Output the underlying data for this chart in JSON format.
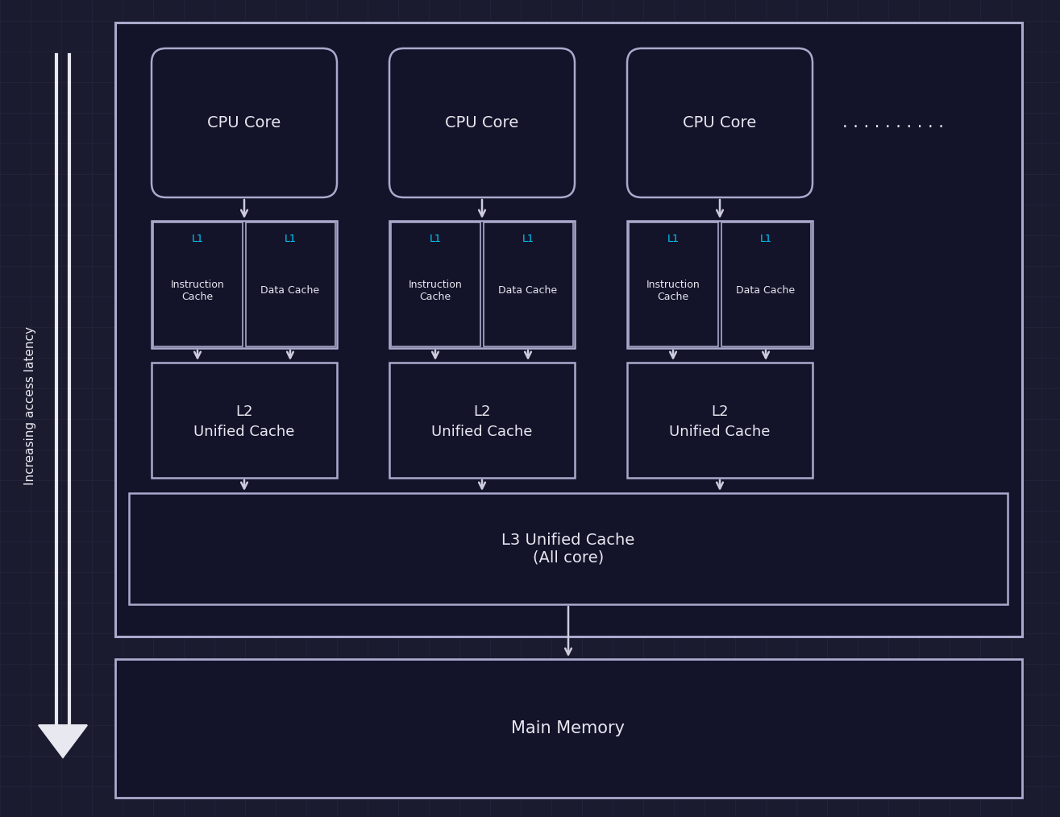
{
  "bg_color": "#1a1b2e",
  "grid_color": "#23243a",
  "box_bg": "#13142a",
  "box_border": "#aaaacc",
  "text_color": "#e8e8f0",
  "l1_label_color": "#00cfff",
  "arrow_color": "#ccccdd",
  "title_latency": "Increasing access latency",
  "cpu_label": "CPU Core",
  "l1_inst_top": "L1",
  "l1_inst_bot": "Instruction\nCache",
  "l1_data_top": "L1",
  "l1_data_bot": "Data Cache",
  "l2_line1": "L2",
  "l2_line2": "Unified Cache",
  "l3_label": "L3 Unified Cache\n(All core)",
  "main_memory_label": "Main Memory",
  "dots": ". . . . . . . . . ."
}
